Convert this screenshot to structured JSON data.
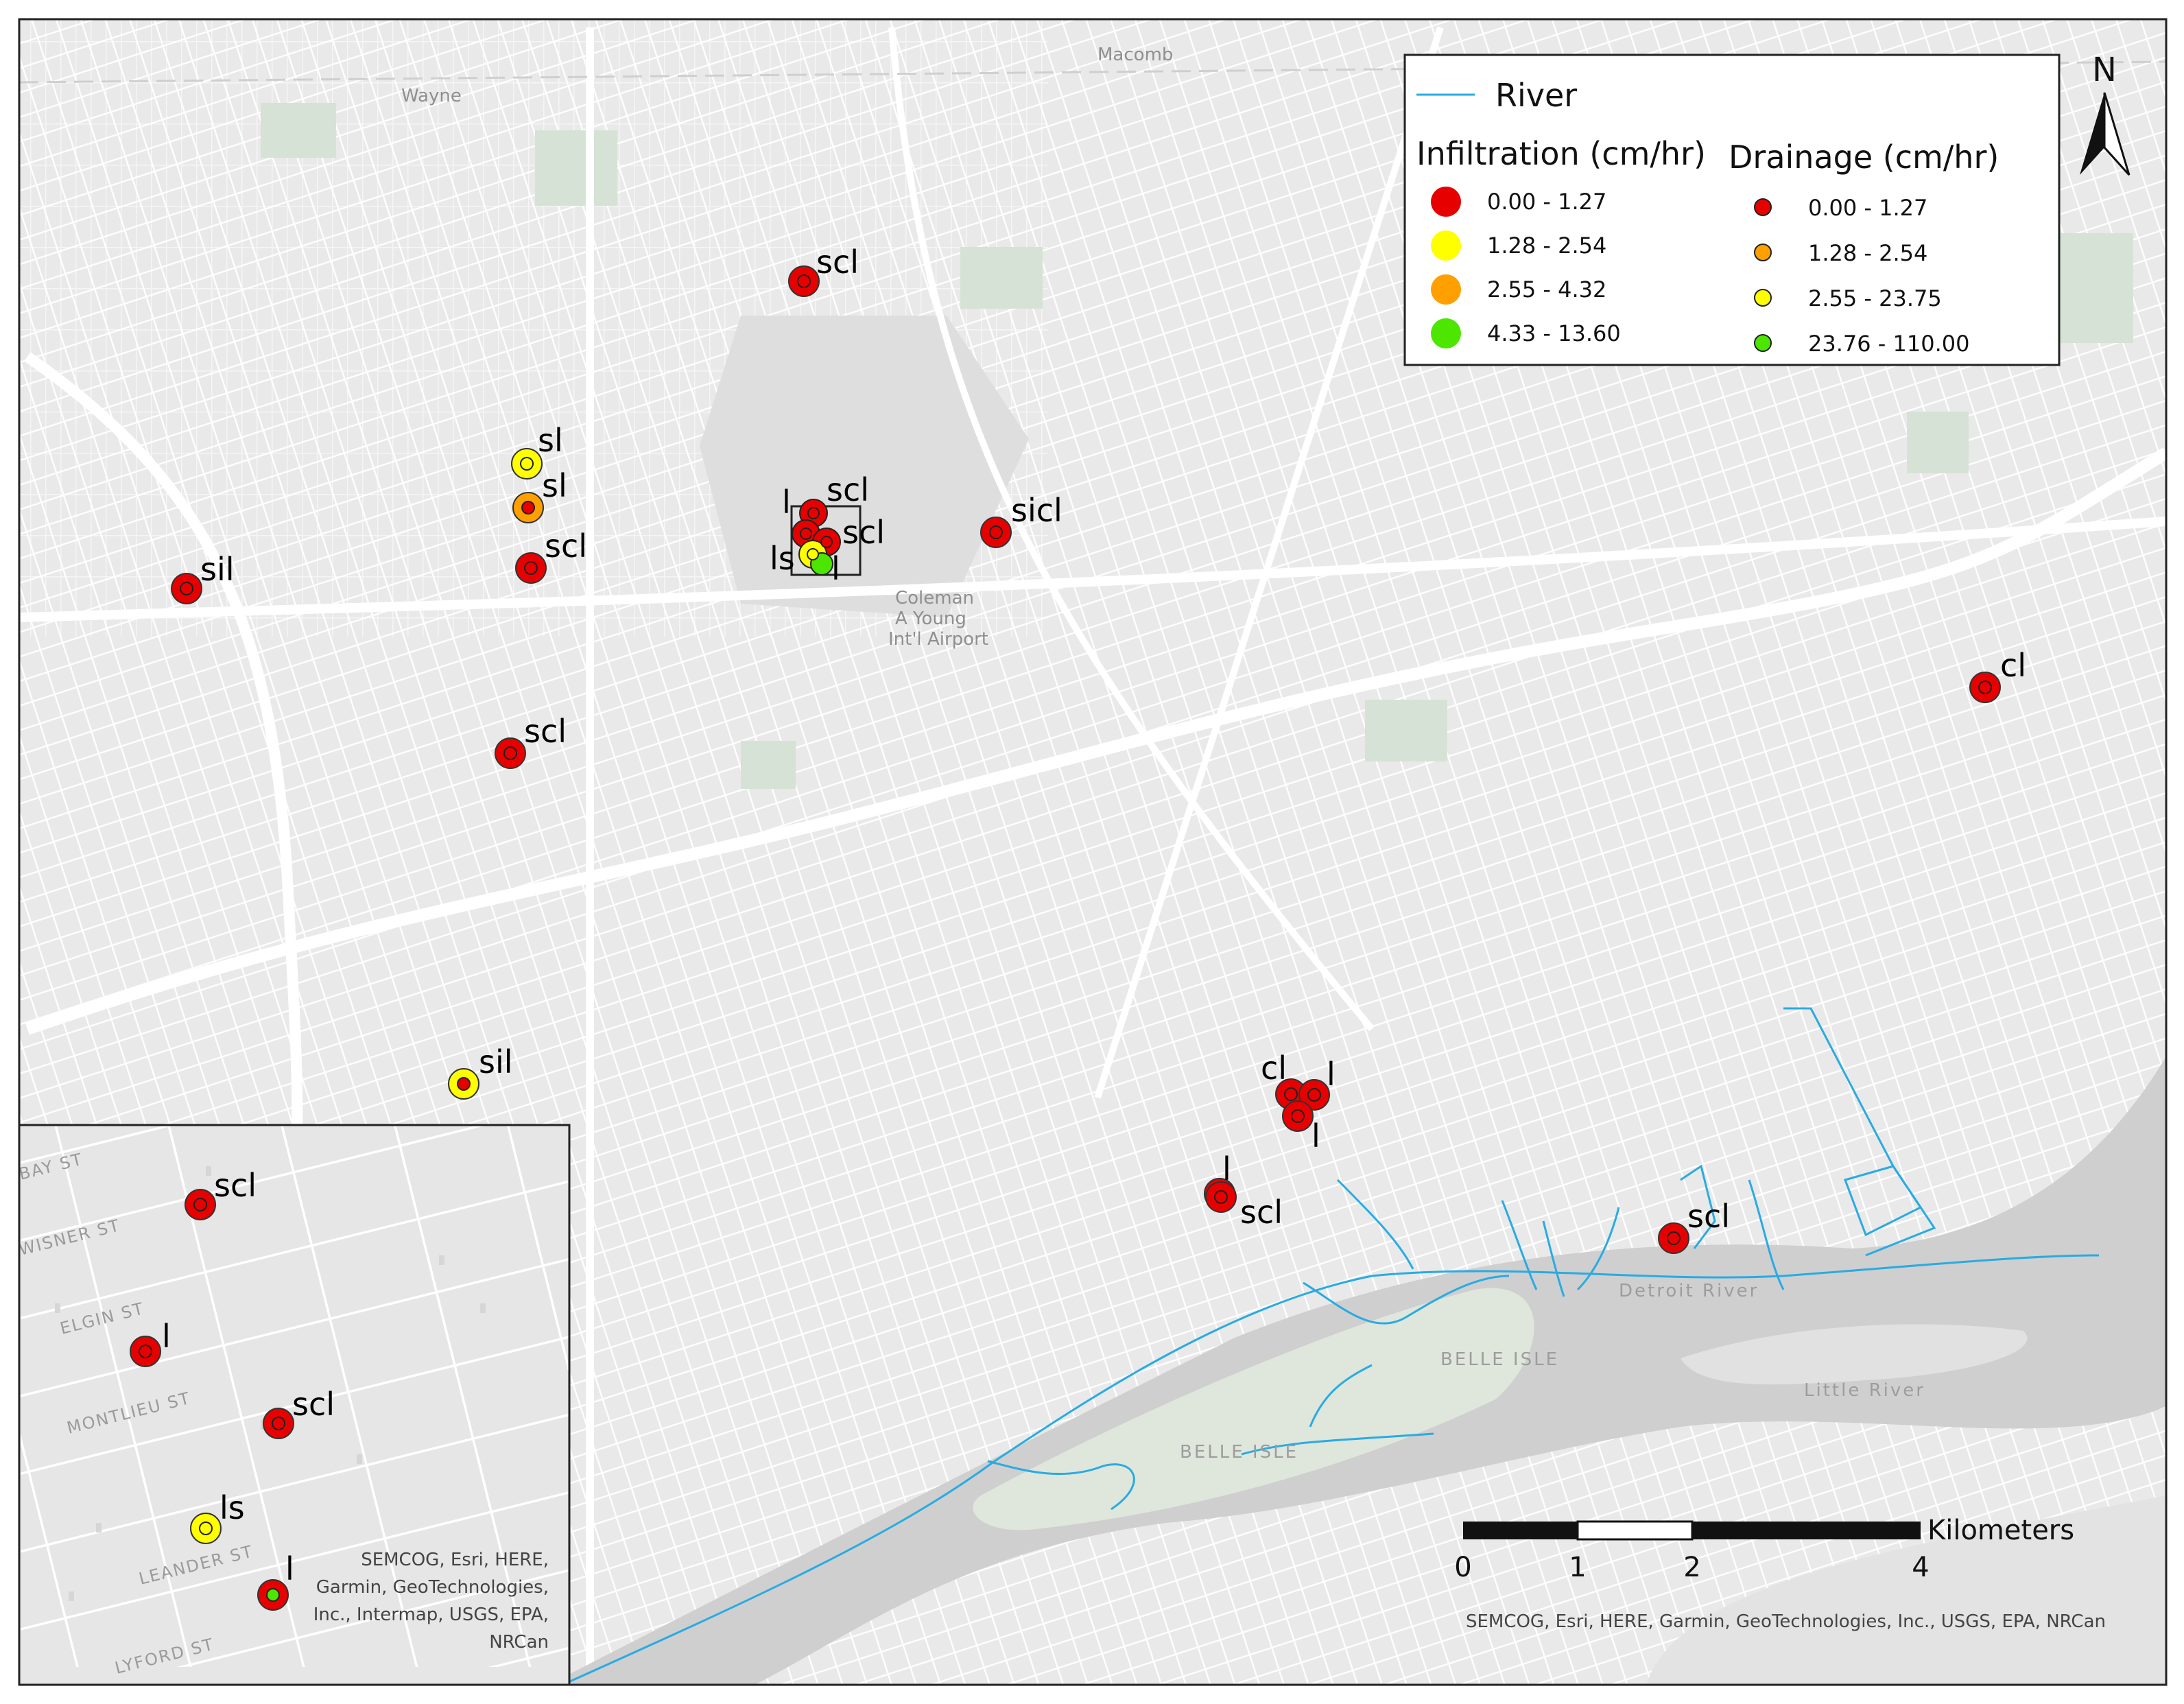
{
  "map": {
    "north_arrow_label": "N",
    "river_color": "#29abe2",
    "basemap_labels": [
      {
        "text": "Macomb"
      },
      {
        "text": "Wayne"
      },
      {
        "text": "Coleman"
      },
      {
        "text": "A Young"
      },
      {
        "text": "Int'l Airport"
      }
    ],
    "water_labels": [
      {
        "text": "Detroit River"
      },
      {
        "text": "BELLE ISLE"
      },
      {
        "text": "BELLE ISLE"
      },
      {
        "text": "Little River"
      }
    ]
  },
  "legend": {
    "river_label": "River",
    "infiltration": {
      "title": "Infiltration (cm/hr)",
      "classes": [
        {
          "label": "0.00 - 1.27",
          "color": "#e60000"
        },
        {
          "label": "1.28 - 2.54",
          "color": "#ffff00"
        },
        {
          "label": "2.55 - 4.32",
          "color": "#ffa000"
        },
        {
          "label": "4.33 - 13.60",
          "color": "#4ce600"
        }
      ]
    },
    "drainage": {
      "title": "Drainage (cm/hr)",
      "classes": [
        {
          "label": "0.00 - 1.27",
          "color": "#e60000"
        },
        {
          "label": "1.28 - 2.54",
          "color": "#ffa000"
        },
        {
          "label": "2.55 - 23.75",
          "color": "#ffff00"
        },
        {
          "label": "23.76 - 110.00",
          "color": "#4ce600"
        }
      ]
    }
  },
  "sites": [
    {
      "soil": "scl",
      "infiltration_class": 0,
      "drainage_class": 0
    },
    {
      "soil": "sl",
      "infiltration_class": 1,
      "drainage_class": 2
    },
    {
      "soil": "sl",
      "infiltration_class": 2,
      "drainage_class": 0
    },
    {
      "soil": "scl",
      "infiltration_class": 0,
      "drainage_class": 0
    },
    {
      "soil": "sil",
      "infiltration_class": 0,
      "drainage_class": 0
    },
    {
      "soil": "scl",
      "infiltration_class": 0,
      "drainage_class": 0
    },
    {
      "soil": "sil",
      "infiltration_class": 1,
      "drainage_class": 0
    },
    {
      "soil": "sicl",
      "infiltration_class": 0,
      "drainage_class": 0
    },
    {
      "soil": "cl",
      "infiltration_class": 0,
      "drainage_class": 0
    },
    {
      "soil": "cl",
      "infiltration_class": 0,
      "drainage_class": 0
    },
    {
      "soil": "l",
      "infiltration_class": 0,
      "drainage_class": 0
    },
    {
      "soil": "l",
      "infiltration_class": 0,
      "drainage_class": 0
    },
    {
      "soil": "l",
      "infiltration_class": 0,
      "drainage_class": 0
    },
    {
      "soil": "scl",
      "infiltration_class": 0,
      "drainage_class": 0
    },
    {
      "soil": "scl",
      "infiltration_class": 0,
      "drainage_class": 0
    }
  ],
  "airport_cluster_labels": [
    {
      "text": "l"
    },
    {
      "text": "scl"
    },
    {
      "text": "scl"
    },
    {
      "text": "ls"
    },
    {
      "text": "l"
    }
  ],
  "inset": {
    "streets": [
      {
        "text": "BAY ST"
      },
      {
        "text": "WISNER ST"
      },
      {
        "text": "ELGIN ST"
      },
      {
        "text": "MONTLIEU ST"
      },
      {
        "text": "LEANDER ST"
      },
      {
        "text": "LYFORD ST"
      }
    ],
    "sites": [
      {
        "soil": "scl",
        "infiltration_class": 0,
        "drainage_class": 0
      },
      {
        "soil": "l",
        "infiltration_class": 0,
        "drainage_class": 0
      },
      {
        "soil": "scl",
        "infiltration_class": 0,
        "drainage_class": 0
      },
      {
        "soil": "ls",
        "infiltration_class": 1,
        "drainage_class": 2
      },
      {
        "soil": "l",
        "infiltration_class": 0,
        "drainage_class": 3
      }
    ],
    "credit_lines": [
      "SEMCOG, Esri, HERE,",
      "Garmin, GeoTechnologies,",
      "Inc., Intermap, USGS, EPA,",
      "NRCan"
    ]
  },
  "scale_bar": {
    "unit": "Kilometers",
    "ticks": [
      0,
      1,
      2,
      4
    ]
  },
  "credit": "SEMCOG, Esri, HERE, Garmin, GeoTechnologies, Inc., USGS, EPA, NRCan"
}
